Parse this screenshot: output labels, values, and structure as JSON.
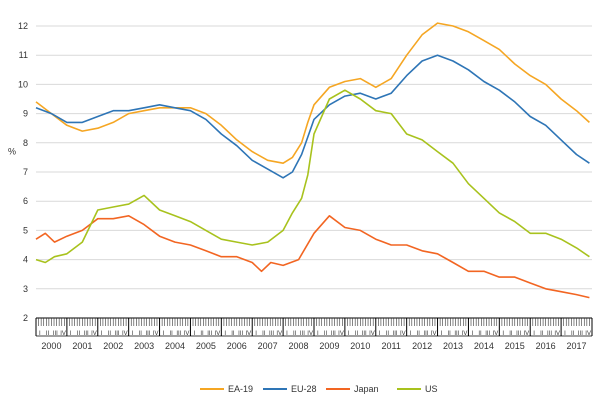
{
  "chart_data": {
    "type": "line",
    "ylabel": "%",
    "xlabel": "",
    "ylim": [
      2,
      12
    ],
    "yticks": [
      2,
      3,
      4,
      5,
      6,
      7,
      8,
      9,
      10,
      11,
      12
    ],
    "xlim": [
      2000,
      2017.917
    ],
    "xticks": [
      "2000",
      "2001",
      "2002",
      "2003",
      "2004",
      "2005",
      "2006",
      "2007",
      "2008",
      "2009",
      "2010",
      "2011",
      "2012",
      "2013",
      "2014",
      "2015",
      "2016",
      "2017"
    ],
    "month_tick_labels": [
      "I",
      "II",
      "III",
      "IV"
    ],
    "grid": "horizontal",
    "legend_position": "bottom",
    "series": [
      {
        "name": "EA-19",
        "color": "#f5a623",
        "points": [
          [
            2000.0,
            9.4
          ],
          [
            2000.5,
            9.0
          ],
          [
            2001.0,
            8.6
          ],
          [
            2001.5,
            8.4
          ],
          [
            2002.0,
            8.5
          ],
          [
            2002.5,
            8.7
          ],
          [
            2003.0,
            9.0
          ],
          [
            2003.5,
            9.1
          ],
          [
            2004.0,
            9.2
          ],
          [
            2004.5,
            9.2
          ],
          [
            2005.0,
            9.2
          ],
          [
            2005.5,
            9.0
          ],
          [
            2006.0,
            8.6
          ],
          [
            2006.5,
            8.1
          ],
          [
            2007.0,
            7.7
          ],
          [
            2007.5,
            7.4
          ],
          [
            2008.0,
            7.3
          ],
          [
            2008.3,
            7.5
          ],
          [
            2008.6,
            8.0
          ],
          [
            2008.8,
            8.7
          ],
          [
            2009.0,
            9.3
          ],
          [
            2009.5,
            9.9
          ],
          [
            2010.0,
            10.1
          ],
          [
            2010.5,
            10.2
          ],
          [
            2011.0,
            9.9
          ],
          [
            2011.5,
            10.2
          ],
          [
            2012.0,
            11.0
          ],
          [
            2012.5,
            11.7
          ],
          [
            2013.0,
            12.1
          ],
          [
            2013.5,
            12.0
          ],
          [
            2014.0,
            11.8
          ],
          [
            2014.5,
            11.5
          ],
          [
            2015.0,
            11.2
          ],
          [
            2015.5,
            10.7
          ],
          [
            2016.0,
            10.3
          ],
          [
            2016.5,
            10.0
          ],
          [
            2017.0,
            9.5
          ],
          [
            2017.5,
            9.1
          ],
          [
            2017.917,
            8.7
          ]
        ]
      },
      {
        "name": "EU-28",
        "color": "#2e75b6",
        "points": [
          [
            2000.0,
            9.2
          ],
          [
            2000.5,
            9.0
          ],
          [
            2001.0,
            8.7
          ],
          [
            2001.5,
            8.7
          ],
          [
            2002.0,
            8.9
          ],
          [
            2002.5,
            9.1
          ],
          [
            2003.0,
            9.1
          ],
          [
            2003.5,
            9.2
          ],
          [
            2004.0,
            9.3
          ],
          [
            2004.5,
            9.2
          ],
          [
            2005.0,
            9.1
          ],
          [
            2005.5,
            8.8
          ],
          [
            2006.0,
            8.3
          ],
          [
            2006.5,
            7.9
          ],
          [
            2007.0,
            7.4
          ],
          [
            2007.5,
            7.1
          ],
          [
            2008.0,
            6.8
          ],
          [
            2008.3,
            7.0
          ],
          [
            2008.6,
            7.6
          ],
          [
            2008.8,
            8.2
          ],
          [
            2009.0,
            8.8
          ],
          [
            2009.5,
            9.3
          ],
          [
            2010.0,
            9.6
          ],
          [
            2010.5,
            9.7
          ],
          [
            2011.0,
            9.5
          ],
          [
            2011.5,
            9.7
          ],
          [
            2012.0,
            10.3
          ],
          [
            2012.5,
            10.8
          ],
          [
            2013.0,
            11.0
          ],
          [
            2013.5,
            10.8
          ],
          [
            2014.0,
            10.5
          ],
          [
            2014.5,
            10.1
          ],
          [
            2015.0,
            9.8
          ],
          [
            2015.5,
            9.4
          ],
          [
            2016.0,
            8.9
          ],
          [
            2016.5,
            8.6
          ],
          [
            2017.0,
            8.1
          ],
          [
            2017.5,
            7.6
          ],
          [
            2017.917,
            7.3
          ]
        ]
      },
      {
        "name": "Japan",
        "color": "#f26522",
        "points": [
          [
            2000.0,
            4.7
          ],
          [
            2000.3,
            4.9
          ],
          [
            2000.6,
            4.6
          ],
          [
            2001.0,
            4.8
          ],
          [
            2001.5,
            5.0
          ],
          [
            2002.0,
            5.4
          ],
          [
            2002.5,
            5.4
          ],
          [
            2003.0,
            5.5
          ],
          [
            2003.5,
            5.2
          ],
          [
            2004.0,
            4.8
          ],
          [
            2004.5,
            4.6
          ],
          [
            2005.0,
            4.5
          ],
          [
            2005.5,
            4.3
          ],
          [
            2006.0,
            4.1
          ],
          [
            2006.5,
            4.1
          ],
          [
            2007.0,
            3.9
          ],
          [
            2007.3,
            3.6
          ],
          [
            2007.6,
            3.9
          ],
          [
            2008.0,
            3.8
          ],
          [
            2008.5,
            4.0
          ],
          [
            2009.0,
            4.9
          ],
          [
            2009.5,
            5.5
          ],
          [
            2010.0,
            5.1
          ],
          [
            2010.5,
            5.0
          ],
          [
            2011.0,
            4.7
          ],
          [
            2011.5,
            4.5
          ],
          [
            2012.0,
            4.5
          ],
          [
            2012.5,
            4.3
          ],
          [
            2013.0,
            4.2
          ],
          [
            2013.5,
            3.9
          ],
          [
            2014.0,
            3.6
          ],
          [
            2014.5,
            3.6
          ],
          [
            2015.0,
            3.4
          ],
          [
            2015.5,
            3.4
          ],
          [
            2016.0,
            3.2
          ],
          [
            2016.5,
            3.0
          ],
          [
            2017.0,
            2.9
          ],
          [
            2017.5,
            2.8
          ],
          [
            2017.917,
            2.7
          ]
        ]
      },
      {
        "name": "US",
        "color": "#a8c21d",
        "points": [
          [
            2000.0,
            4.0
          ],
          [
            2000.3,
            3.9
          ],
          [
            2000.6,
            4.1
          ],
          [
            2001.0,
            4.2
          ],
          [
            2001.5,
            4.6
          ],
          [
            2002.0,
            5.7
          ],
          [
            2002.5,
            5.8
          ],
          [
            2003.0,
            5.9
          ],
          [
            2003.5,
            6.2
          ],
          [
            2004.0,
            5.7
          ],
          [
            2004.5,
            5.5
          ],
          [
            2005.0,
            5.3
          ],
          [
            2005.5,
            5.0
          ],
          [
            2006.0,
            4.7
          ],
          [
            2006.5,
            4.6
          ],
          [
            2007.0,
            4.5
          ],
          [
            2007.5,
            4.6
          ],
          [
            2008.0,
            5.0
          ],
          [
            2008.3,
            5.6
          ],
          [
            2008.6,
            6.1
          ],
          [
            2008.8,
            6.9
          ],
          [
            2009.0,
            8.3
          ],
          [
            2009.5,
            9.5
          ],
          [
            2010.0,
            9.8
          ],
          [
            2010.5,
            9.5
          ],
          [
            2011.0,
            9.1
          ],
          [
            2011.5,
            9.0
          ],
          [
            2012.0,
            8.3
          ],
          [
            2012.5,
            8.1
          ],
          [
            2013.0,
            7.7
          ],
          [
            2013.5,
            7.3
          ],
          [
            2014.0,
            6.6
          ],
          [
            2014.5,
            6.1
          ],
          [
            2015.0,
            5.6
          ],
          [
            2015.5,
            5.3
          ],
          [
            2016.0,
            4.9
          ],
          [
            2016.5,
            4.9
          ],
          [
            2017.0,
            4.7
          ],
          [
            2017.5,
            4.4
          ],
          [
            2017.917,
            4.1
          ]
        ]
      }
    ]
  }
}
